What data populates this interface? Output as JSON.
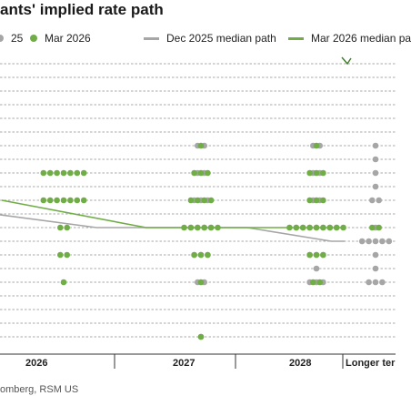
{
  "title": "ants' implied rate path",
  "source": "omberg, RSM US",
  "legend": [
    {
      "label": "25",
      "kind": "dot",
      "color": "#a6a6a6"
    },
    {
      "label": "Mar 2026",
      "kind": "dot",
      "color": "#70ad47"
    },
    {
      "label": "Dec 2025 median path",
      "kind": "line",
      "color": "#a6a6a6"
    },
    {
      "label": "Mar 2026 median pa",
      "kind": "line",
      "color": "#70ad47"
    }
  ],
  "chart_data": {
    "type": "scatter",
    "title": "ants' implied rate path",
    "categories": [
      "2026",
      "2027",
      "2028",
      "Longer ter"
    ],
    "ylim": [
      1.5,
      5.75
    ],
    "grid": true,
    "colors": {
      "dec": "#a6a6a6",
      "mar": "#70ad47"
    },
    "series": [
      {
        "name": "Mar 2026",
        "points": [
          {
            "x": "2026",
            "y": 3.875,
            "count": 7
          },
          {
            "x": "2026",
            "y": 3.625,
            "count": 7
          },
          {
            "x": "2026",
            "y": 3.375,
            "count": 2
          },
          {
            "x": "2026",
            "y": 3.125,
            "count": 2
          },
          {
            "x": "2026",
            "y": 2.875,
            "count": 1
          },
          {
            "x": "2027",
            "y": 4.125,
            "count": 1
          },
          {
            "x": "2027",
            "y": 3.875,
            "count": 3
          },
          {
            "x": "2027",
            "y": 3.625,
            "count": 4
          },
          {
            "x": "2027",
            "y": 3.375,
            "count": 6
          },
          {
            "x": "2027",
            "y": 3.125,
            "count": 3
          },
          {
            "x": "2027",
            "y": 2.875,
            "count": 1
          },
          {
            "x": "2027",
            "y": 2.375,
            "count": 1
          },
          {
            "x": "2028",
            "y": 4.125,
            "count": 1
          },
          {
            "x": "2028",
            "y": 3.875,
            "count": 3
          },
          {
            "x": "2028",
            "y": 3.625,
            "count": 3
          },
          {
            "x": "2028",
            "y": 3.375,
            "count": 9
          },
          {
            "x": "2028",
            "y": 3.125,
            "count": 3
          },
          {
            "x": "2028",
            "y": 2.875,
            "count": 2
          },
          {
            "x": "Longer ter",
            "y": 3.375,
            "count": 2
          }
        ]
      },
      {
        "name": "",
        "points": [
          {
            "x": "2027",
            "y": 4.125,
            "count": 2
          },
          {
            "x": "2027",
            "y": 3.875,
            "count": 2
          },
          {
            "x": "2027",
            "y": 3.625,
            "count": 3
          },
          {
            "x": "2027",
            "y": 3.375,
            "count": 4
          },
          {
            "x": "2027",
            "y": 3.125,
            "count": 3
          },
          {
            "x": "2027",
            "y": 2.875,
            "count": 2
          },
          {
            "x": "2027",
            "y": 2.375,
            "count": 1
          },
          {
            "x": "2028",
            "y": 4.125,
            "count": 2
          },
          {
            "x": "2028",
            "y": 3.875,
            "count": 2
          },
          {
            "x": "2028",
            "y": 3.625,
            "count": 2
          },
          {
            "x": "2028",
            "y": 3.375,
            "count": 7
          },
          {
            "x": "2028",
            "y": 3.125,
            "count": 3
          },
          {
            "x": "2028",
            "y": 3.0,
            "count": 1
          },
          {
            "x": "2028",
            "y": 2.875,
            "count": 3
          },
          {
            "x": "Longer ter",
            "y": 4.125,
            "count": 1
          },
          {
            "x": "Longer ter",
            "y": 4.0,
            "count": 1
          },
          {
            "x": "Longer ter",
            "y": 3.875,
            "count": 1
          },
          {
            "x": "Longer ter",
            "y": 3.75,
            "count": 1
          },
          {
            "x": "Longer ter",
            "y": 3.625,
            "count": 2
          },
          {
            "x": "Longer ter",
            "y": 3.375,
            "count": 1
          },
          {
            "x": "Longer ter",
            "y": 3.25,
            "count": 5
          },
          {
            "x": "Longer ter",
            "y": 3.125,
            "count": 1
          },
          {
            "x": "Longer ter",
            "y": 3.0,
            "count": 1
          },
          {
            "x": "Longer ter",
            "y": 2.875,
            "count": 3
          }
        ]
      }
    ],
    "median_lines": [
      {
        "name": "Dec 2025 median path",
        "color": "#a6a6a6",
        "points": [
          [
            -0.93,
            3.57
          ],
          [
            0.24,
            3.375
          ],
          [
            1.4,
            3.375
          ],
          [
            2.25,
            3.25
          ],
          [
            2.48,
            3.25
          ]
        ]
      },
      {
        "name": "Mar 2026 median pa",
        "color": "#70ad47",
        "points": [
          [
            -0.45,
            3.625
          ],
          [
            0.6,
            3.375
          ],
          [
            1.55,
            3.375
          ],
          [
            2.48,
            3.375
          ]
        ]
      }
    ]
  }
}
